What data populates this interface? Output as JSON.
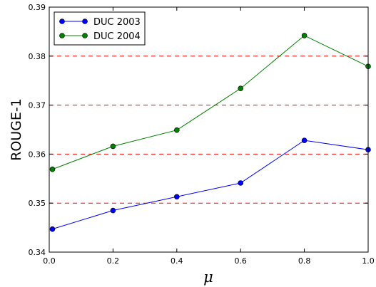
{
  "chart_data": {
    "type": "line",
    "x": [
      0.01,
      0.2,
      0.4,
      0.6,
      0.8,
      1.0
    ],
    "series": [
      {
        "name": "DUC 2003",
        "color": "#0000ff",
        "values": [
          0.3447,
          0.3485,
          0.3513,
          0.3541,
          0.3628,
          0.3609
        ]
      },
      {
        "name": "DUC 2004",
        "color": "#008000",
        "values": [
          0.3569,
          0.3616,
          0.3649,
          0.3734,
          0.3842,
          0.3779
        ]
      }
    ],
    "xlabel": "μ",
    "ylabel": "ROUGE-1",
    "xlim": [
      0.0,
      1.0
    ],
    "ylim": [
      0.34,
      0.39
    ],
    "x_ticks": [
      "0.0",
      "0.2",
      "0.4",
      "0.6",
      "0.8",
      "1.0"
    ],
    "y_ticks": [
      "0.34",
      "0.35",
      "0.36",
      "0.37",
      "0.38",
      "0.39"
    ],
    "y_tick_values": [
      0.34,
      0.35,
      0.36,
      0.37,
      0.38,
      0.39
    ],
    "gridlines_y": [
      0.35,
      0.36,
      0.37,
      0.38
    ],
    "grid_color": "#ff0000",
    "grid_style": "dashed",
    "legend_position": "top-left"
  }
}
